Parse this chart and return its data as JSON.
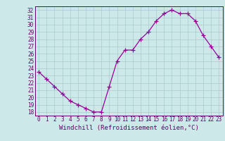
{
  "x": [
    0,
    1,
    2,
    3,
    4,
    5,
    6,
    7,
    8,
    9,
    10,
    11,
    12,
    13,
    14,
    15,
    16,
    17,
    18,
    19,
    20,
    21,
    22,
    23
  ],
  "y": [
    23.5,
    22.5,
    21.5,
    20.5,
    19.5,
    19.0,
    18.5,
    18.0,
    18.0,
    21.5,
    25.0,
    26.5,
    26.5,
    28.0,
    29.0,
    30.5,
    31.5,
    32.0,
    31.5,
    31.5,
    30.5,
    28.5,
    27.0,
    25.5
  ],
  "line_color": "#990099",
  "marker": "+",
  "marker_size": 4,
  "bg_color": "#cce8e8",
  "grid_color": "#aacccc",
  "xlabel": "Windchill (Refroidissement éolien,°C)",
  "ylabel": "",
  "xlim": [
    -0.5,
    23.5
  ],
  "ylim": [
    17.5,
    32.5
  ],
  "yticks": [
    18,
    19,
    20,
    21,
    22,
    23,
    24,
    25,
    26,
    27,
    28,
    29,
    30,
    31,
    32
  ],
  "xticks": [
    0,
    1,
    2,
    3,
    4,
    5,
    6,
    7,
    8,
    9,
    10,
    11,
    12,
    13,
    14,
    15,
    16,
    17,
    18,
    19,
    20,
    21,
    22,
    23
  ],
  "tick_label_size": 5.5,
  "xlabel_size": 6.5,
  "axis_color": "#660066",
  "tick_color": "#660066",
  "spine_color": "#660066"
}
